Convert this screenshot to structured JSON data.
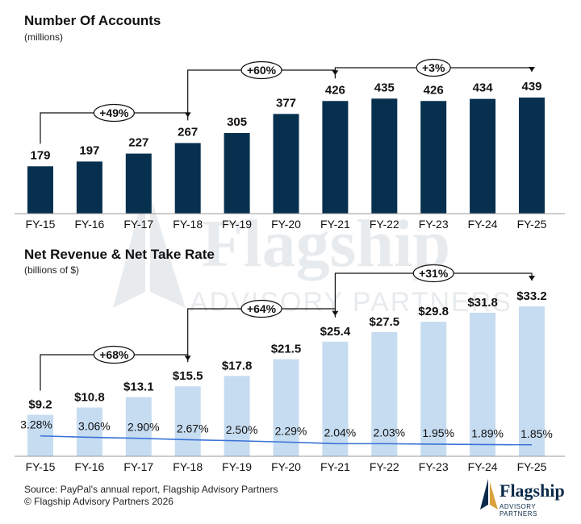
{
  "colors": {
    "accounts_bar": "#07304f",
    "revenue_bar": "#c6dcf1",
    "take_rate_line": "#3a72d6",
    "brand": "#0b2a4a",
    "logo_gold": "#d9a23a"
  },
  "chart_data": [
    {
      "type": "bar",
      "title": "Number Of Accounts",
      "subtitle": "(millions)",
      "categories": [
        "FY-15",
        "FY-16",
        "FY-17",
        "FY-18",
        "FY-19",
        "FY-20",
        "FY-21",
        "FY-22",
        "FY-23",
        "FY-24",
        "FY-25"
      ],
      "values": [
        179,
        197,
        227,
        267,
        305,
        377,
        426,
        435,
        426,
        434,
        439
      ],
      "value_labels": [
        "179",
        "197",
        "227",
        "267",
        "305",
        "377",
        "426",
        "435",
        "426",
        "434",
        "439"
      ],
      "ylim": [
        0,
        480
      ],
      "grid": false,
      "annotations": [
        {
          "label": "+49%",
          "from": "FY-15",
          "to": "FY-18"
        },
        {
          "label": "+60%",
          "from": "FY-18",
          "to": "FY-21"
        },
        {
          "label": "+3%",
          "from": "FY-21",
          "to": "FY-25"
        }
      ]
    },
    {
      "type": "bar",
      "title": "Net Revenue & Net Take Rate",
      "subtitle": "(billions of $)",
      "categories": [
        "FY-15",
        "FY-16",
        "FY-17",
        "FY-18",
        "FY-19",
        "FY-20",
        "FY-21",
        "FY-22",
        "FY-23",
        "FY-24",
        "FY-25"
      ],
      "series": [
        {
          "type": "bar",
          "values": [
            9.2,
            10.8,
            13.1,
            15.5,
            17.8,
            21.5,
            25.4,
            27.5,
            29.8,
            31.8,
            33.2
          ],
          "value_labels": [
            "$9.2",
            "$10.8",
            "$13.1",
            "$15.5",
            "$17.8",
            "$21.5",
            "$25.4",
            "$27.5",
            "$29.8",
            "$31.8",
            "$33.2"
          ]
        },
        {
          "type": "line",
          "values": [
            3.28,
            3.06,
            2.9,
            2.67,
            2.5,
            2.29,
            2.04,
            2.03,
            1.95,
            1.89,
            1.85
          ],
          "value_labels": [
            "3.28%",
            "3.06%",
            "2.90%",
            "2.67%",
            "2.50%",
            "2.29%",
            "2.04%",
            "2.03%",
            "1.95%",
            "1.89%",
            "1.85%"
          ],
          "ylim": [
            0,
            8
          ]
        }
      ],
      "ylim": [
        0,
        36.5
      ],
      "grid": false,
      "annotations": [
        {
          "label": "+68%",
          "from": "FY-15",
          "to": "FY-18"
        },
        {
          "label": "+64%",
          "from": "FY-18",
          "to": "FY-21"
        },
        {
          "label": "+31%",
          "from": "FY-21",
          "to": "FY-25"
        }
      ]
    }
  ],
  "source": {
    "line1": "Source: PayPal's annual report, Flagship Advisory Partners",
    "line2": "© Flagship Advisory Partners 2026"
  },
  "logo": {
    "word": "Flagship",
    "sub": "ADVISORY PARTNERS"
  }
}
